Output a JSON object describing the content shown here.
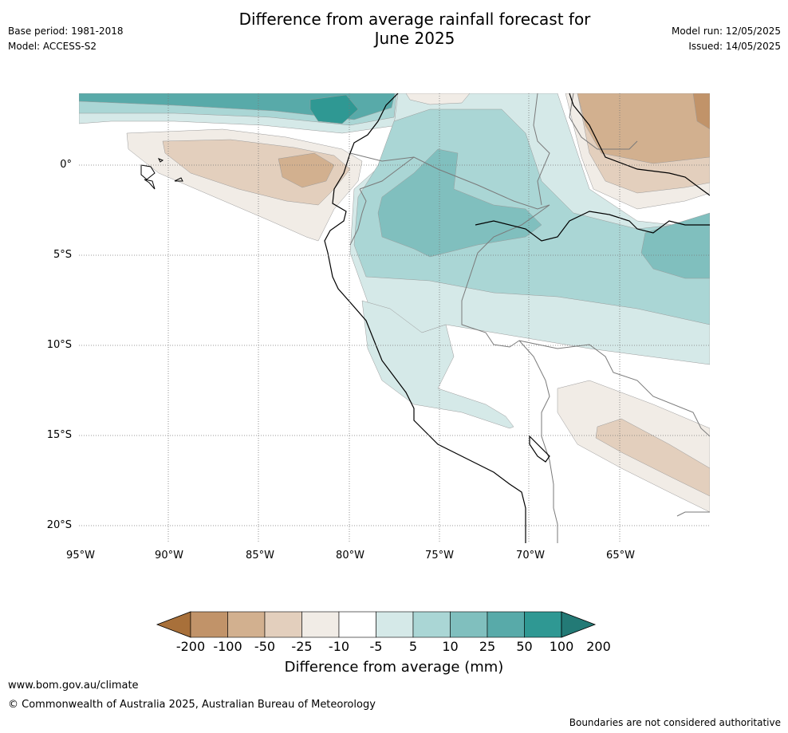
{
  "header": {
    "title_line1": "Difference from average rainfall forecast for",
    "title_line2": "June 2025",
    "base_period": "Base period: 1981-2018",
    "model": "Model: ACCESS-S2",
    "model_run": "Model run: 12/05/2025",
    "issued": "Issued: 14/05/2025"
  },
  "map": {
    "lat_labels": [
      "0°",
      "5°S",
      "10°S",
      "15°S",
      "20°S"
    ],
    "lon_labels": [
      "95°W",
      "90°W",
      "85°W",
      "80°W",
      "75°W",
      "70°W",
      "65°W"
    ]
  },
  "colorbar": {
    "title": "Difference from average (mm)",
    "ticks": [
      "-200",
      "-100",
      "-50",
      "-25",
      "-10",
      "-5",
      "5",
      "10",
      "25",
      "50",
      "100",
      "200"
    ],
    "colors": [
      "#a8703a",
      "#c19369",
      "#d2b08f",
      "#e3cfbd",
      "#f1ece6",
      "#ffffff",
      "#d5e9e8",
      "#aad6d5",
      "#80bfbe",
      "#58aaa9",
      "#2f9893",
      "#237a76"
    ]
  },
  "footer": {
    "website": "www.bom.gov.au/climate",
    "copyright": "© Commonwealth of Australia 2025, Australian Bureau of Meteorology",
    "disclaimer": "Boundaries are not considered authoritative"
  }
}
